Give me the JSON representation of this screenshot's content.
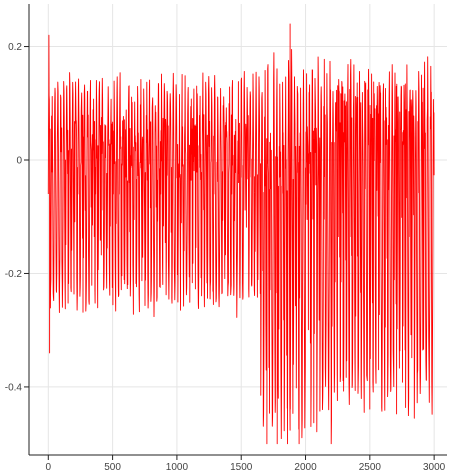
{
  "chart_data": {
    "type": "line",
    "title": "",
    "xlabel": "",
    "ylabel": "",
    "xlim": [
      -150,
      3100
    ],
    "ylim": [
      -0.52,
      0.275
    ],
    "x_ticks": [
      0,
      500,
      1000,
      1500,
      2000,
      2500,
      3000
    ],
    "x_tick_labels": [
      "0",
      "500",
      "1000",
      "1500",
      "2000",
      "2500",
      "3000"
    ],
    "y_ticks": [
      0.2,
      0,
      -0.2,
      -0.4
    ],
    "y_tick_labels": [
      "0.2",
      "0",
      "-0.2",
      "-0.4"
    ],
    "grid": true,
    "legend": "none",
    "series": [
      {
        "color": "#ff0000",
        "x_start": 0,
        "x_end": 3000,
        "period": 23,
        "segments": [
          {
            "x_from": 0,
            "x_to": 1650,
            "upper_peak": 0.16,
            "lower_trough": -0.28,
            "mid_level": 0.02
          },
          {
            "x_from": 1650,
            "x_to": 2150,
            "upper_peak": 0.2,
            "lower_trough": -0.5,
            "mid_level": 0.0
          },
          {
            "x_from": 2150,
            "x_to": 3000,
            "upper_peak": 0.19,
            "lower_trough": -0.46,
            "mid_level": 0.08
          }
        ],
        "spikes": [
          {
            "x": 5,
            "y": 0.22
          },
          {
            "x": 10,
            "y": -0.34
          },
          {
            "x": 1700,
            "y": -0.5
          },
          {
            "x": 1780,
            "y": -0.5
          },
          {
            "x": 1880,
            "y": 0.24
          },
          {
            "x": 1860,
            "y": -0.5
          },
          {
            "x": 1950,
            "y": -0.5
          },
          {
            "x": 2200,
            "y": -0.5
          }
        ]
      }
    ]
  }
}
